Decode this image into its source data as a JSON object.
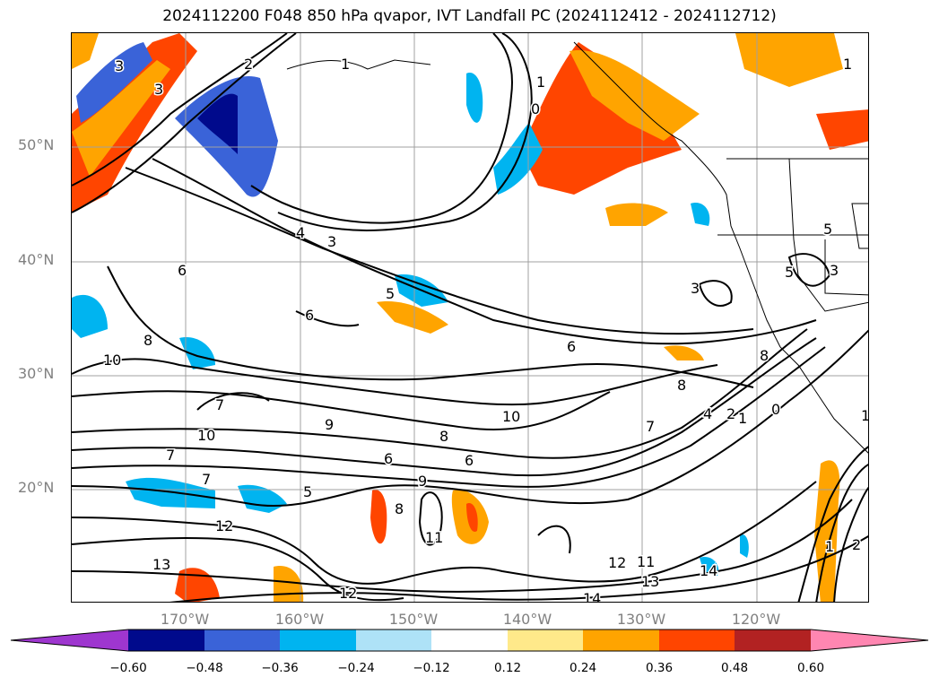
{
  "title": "2024112200 F048 850 hPa qvapor, IVT Landfall PC (2024112412 - 2024112712)",
  "lat_labels": [
    "50°N",
    "40°N",
    "30°N",
    "20°N"
  ],
  "lon_labels": [
    "170°W",
    "160°W",
    "150°W",
    "140°W",
    "130°W",
    "120°W"
  ],
  "colorbar": {
    "colors": [
      "#9e36cf",
      "#000a8c",
      "#3a63d8",
      "#00b4f0",
      "#aee2f7",
      "#ffffff",
      "#ffe98a",
      "#ffa400",
      "#ff4500",
      "#b22222",
      "#ff86b1"
    ],
    "tick_labels": [
      "−0.60",
      "−0.48",
      "−0.36",
      "−0.24",
      "−0.12",
      "0.12",
      "0.24",
      "0.36",
      "0.48",
      "0.60"
    ]
  },
  "contour_labels": [
    "3",
    "4",
    "3",
    "5",
    "6",
    "7",
    "6",
    "8",
    "6",
    "8",
    "10",
    "7",
    "9",
    "10",
    "8",
    "10",
    "6",
    "6",
    "9",
    "7",
    "5",
    "8",
    "12",
    "11",
    "13",
    "12",
    "11",
    "12",
    "13",
    "14",
    "14",
    "2",
    "1",
    "3",
    "1",
    "0",
    "1",
    "3",
    "5",
    "5",
    "3",
    "8",
    "4",
    "2",
    "1",
    "0",
    "7",
    "1",
    "2",
    "1"
  ]
}
